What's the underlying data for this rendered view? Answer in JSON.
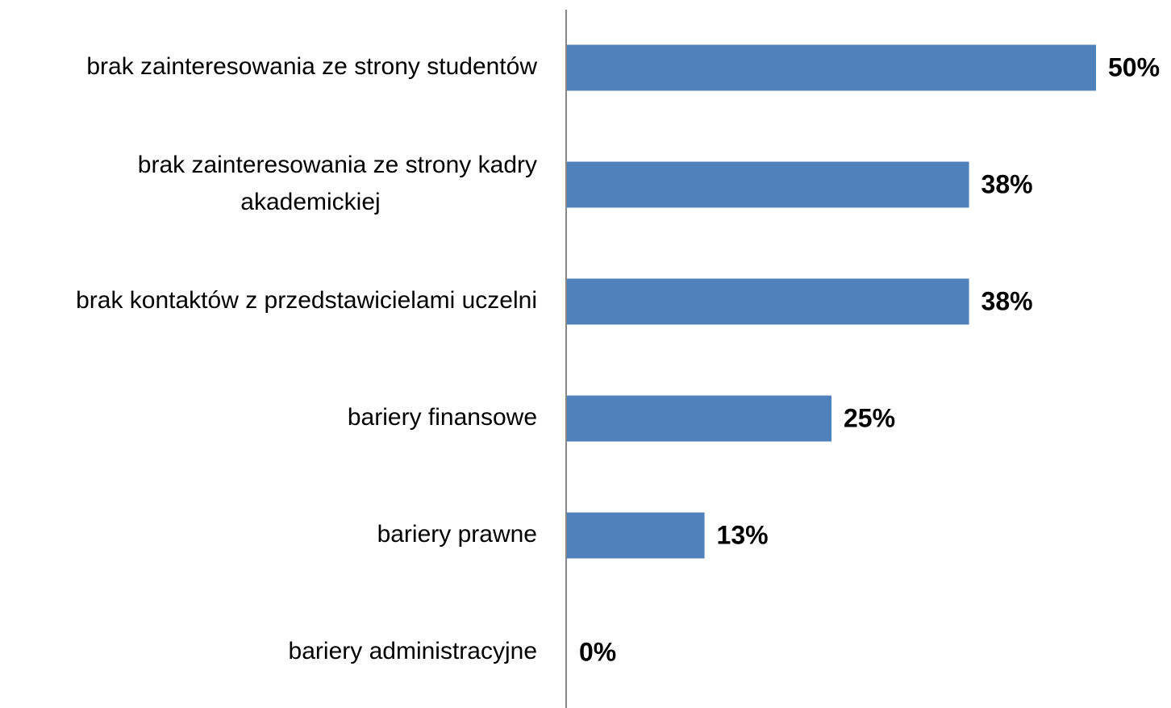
{
  "chart_data": {
    "type": "bar",
    "orientation": "horizontal",
    "categories": [
      [
        "brak zainteresowania ze strony studentów"
      ],
      [
        "brak zainteresowania ze strony kadry",
        "akademickiej"
      ],
      [
        "brak kontaktów z przedstawicielami uczelni"
      ],
      [
        "bariery finansowe"
      ],
      [
        "bariery prawne"
      ],
      [
        "bariery administracyjne"
      ]
    ],
    "values": [
      50,
      38,
      38,
      25,
      13,
      0
    ],
    "data_labels": [
      "50%",
      "38%",
      "38%",
      "25%",
      "13%",
      "0%"
    ],
    "title": "",
    "xlabel": "",
    "ylabel": "",
    "xlim": [
      0,
      50
    ],
    "grid": false,
    "legend": "none",
    "bar_color": "#4f81bd",
    "axis_color": "#888888"
  }
}
